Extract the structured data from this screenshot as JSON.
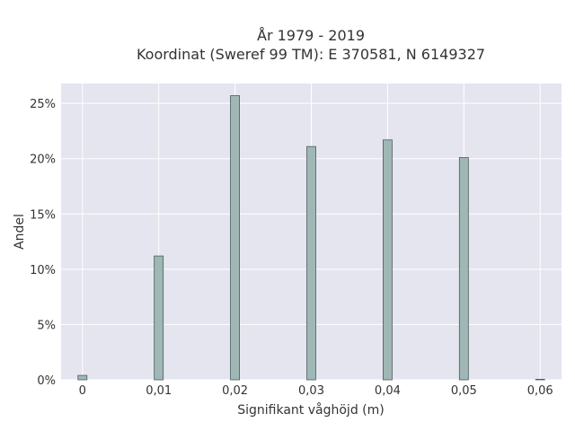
{
  "chart_data": {
    "type": "bar",
    "title_lines": [
      "År 1979 - 2019",
      "Koordinat (Sweref 99 TM): E 370581, N 6149327"
    ],
    "xlabel": "Signifikant våghöjd (m)",
    "ylabel": "Andel",
    "x": [
      0,
      0.01,
      0.02,
      0.03,
      0.04,
      0.05,
      0.06
    ],
    "values": [
      0.4,
      11.2,
      25.7,
      21.1,
      21.7,
      20.1,
      0.05
    ],
    "xlim": [
      -0.0028,
      0.0628
    ],
    "ylim": [
      0,
      26.8
    ],
    "x_ticks": [
      0,
      0.01,
      0.02,
      0.03,
      0.04,
      0.05,
      0.06
    ],
    "x_tick_labels": [
      "0",
      "0,01",
      "0,02",
      "0,03",
      "0,04",
      "0,05",
      "0,06"
    ],
    "y_ticks": [
      0,
      5,
      10,
      15,
      20,
      25
    ],
    "y_tick_labels": [
      "0%",
      "5%",
      "10%",
      "15%",
      "20%",
      "25%"
    ],
    "grid": true,
    "colors": {
      "bar_fill": "#9fb8b6",
      "bar_stroke": "#4a5a5a",
      "plot_bg": "#e5e5f0",
      "grid": "#ffffff"
    }
  }
}
